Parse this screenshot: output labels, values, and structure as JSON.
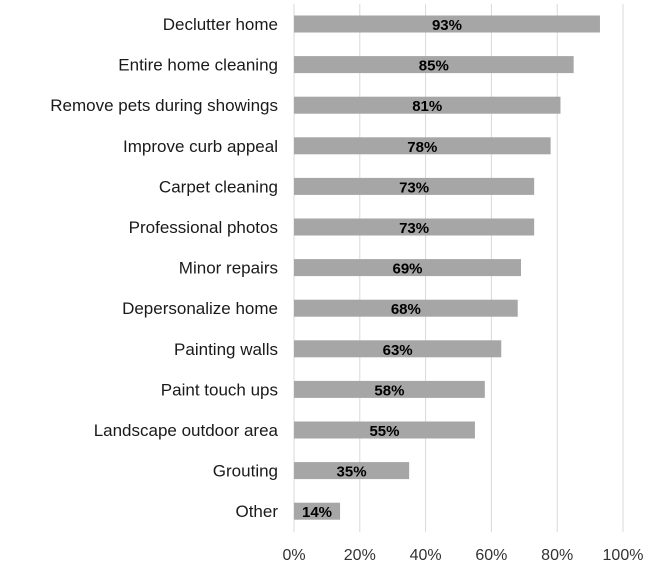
{
  "chart_data": {
    "type": "bar",
    "orientation": "horizontal",
    "categories": [
      "Declutter home",
      "Entire home cleaning",
      "Remove pets during showings",
      "Improve curb appeal",
      "Carpet cleaning",
      "Professional photos",
      "Minor repairs",
      "Depersonalize home",
      "Painting walls",
      "Paint touch ups",
      "Landscape outdoor area",
      "Grouting",
      "Other"
    ],
    "values": [
      93,
      85,
      81,
      78,
      73,
      73,
      69,
      68,
      63,
      58,
      55,
      35,
      14
    ],
    "data_labels": [
      "93%",
      "85%",
      "81%",
      "78%",
      "73%",
      "73%",
      "69%",
      "68%",
      "63%",
      "58%",
      "55%",
      "35%",
      "14%"
    ],
    "xlim": [
      0,
      100
    ],
    "x_ticks": [
      "0%",
      "20%",
      "40%",
      "60%",
      "80%",
      "100%"
    ],
    "x_tick_values": [
      0,
      20,
      40,
      60,
      80,
      100
    ],
    "grid": true,
    "bar_color": "#a6a6a6",
    "title": "",
    "xlabel": "",
    "ylabel": ""
  }
}
